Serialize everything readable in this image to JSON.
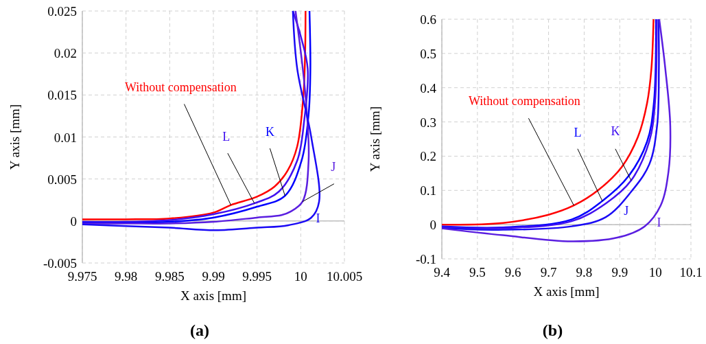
{
  "chart_data": [
    {
      "type": "line",
      "title": "(a)",
      "xlabel": "X axis [mm]",
      "ylabel": "Y axis [mm]",
      "grid": true,
      "legend": false,
      "marker": "none",
      "line_style": "solid",
      "xlim": [
        9.975,
        10.005
      ],
      "xticks": [
        9.975,
        9.98,
        9.985,
        9.99,
        9.995,
        {
          "value": 10,
          "label": "10"
        },
        10.005
      ],
      "ylim": [
        -0.005,
        0.025
      ],
      "yticks": [
        -0.005,
        0,
        0.005,
        0.01,
        0.015,
        0.02,
        0.025
      ],
      "series": [
        {
          "name": "Without compensation",
          "color": "#ff0000",
          "x": [
            9.975,
            9.98,
            9.985,
            9.99,
            9.992,
            9.995,
            9.997,
            9.9985,
            9.9996,
            10.0003,
            10.0005,
            10.00055
          ],
          "values": [
            0.0002,
            0.0002,
            0.0003,
            0.001,
            0.0019,
            0.0029,
            0.0041,
            0.006,
            0.0089,
            0.0149,
            0.02,
            0.025
          ]
        },
        {
          "name": "L",
          "color": "#4010f0",
          "x": [
            9.975,
            9.98,
            9.985,
            9.99,
            9.9947,
            9.9975,
            9.9996,
            10.0004,
            10.0008,
            10.0,
            9.9991
          ],
          "values": [
            -0.0001,
            -0.0001,
            0.0001,
            0.0008,
            0.0021,
            0.0035,
            0.0072,
            0.012,
            0.0181,
            0.022,
            0.025
          ]
        },
        {
          "name": "K",
          "color": "#0000ff",
          "x": [
            9.975,
            9.98,
            9.985,
            9.99,
            9.995,
            9.9982,
            10.0001,
            10.0009,
            10.0011,
            10.001
          ],
          "values": [
            -0.0002,
            -0.0002,
            -0.0001,
            0.0004,
            0.0017,
            0.003,
            0.0072,
            0.0127,
            0.018,
            0.025
          ]
        },
        {
          "name": "J",
          "color": "#5a1ee0",
          "x": [
            9.975,
            9.98,
            9.985,
            9.99,
            9.995,
            9.9978,
            9.9988,
            10.0002,
            10.0009,
            10.0005,
            9.9994
          ],
          "values": [
            -0.0003,
            -0.0003,
            -0.0003,
            -0.0001,
            0.0004,
            0.0007,
            0.0011,
            0.0023,
            0.0072,
            0.0154,
            0.025
          ]
        },
        {
          "name": "I",
          "color": "#1a0af5",
          "x": [
            9.975,
            9.98,
            9.985,
            9.9902,
            9.995,
            9.9986,
            10.0012,
            10.0021,
            10.0012,
            9.9996,
            9.9991
          ],
          "values": [
            -0.0004,
            -0.0006,
            -0.0008,
            -0.0011,
            -0.0008,
            -0.0005,
            0.0004,
            0.0023,
            0.01,
            0.0181,
            0.025
          ]
        }
      ]
    },
    {
      "type": "line",
      "title": "(b)",
      "xlabel": "X axis [mm]",
      "ylabel": "Y axis [mm]",
      "grid": true,
      "legend": false,
      "marker": "none",
      "line_style": "solid",
      "xlim": [
        9.4,
        10.1
      ],
      "xticks": [
        9.4,
        9.5,
        9.6,
        9.7,
        9.8,
        9.9,
        {
          "value": 10,
          "label": "10"
        },
        10.1
      ],
      "ylim": [
        -0.1,
        0.6
      ],
      "yticks": [
        -0.1,
        0,
        0.1,
        0.2,
        0.3,
        0.4,
        0.5,
        0.6
      ],
      "series": [
        {
          "name": "Without compensation",
          "color": "#ff0000",
          "x": [
            9.4,
            9.572,
            9.7,
            9.771,
            9.841,
            9.906,
            9.951,
            9.977,
            9.989,
            9.995
          ],
          "values": [
            0.0,
            0.005,
            0.029,
            0.056,
            0.102,
            0.169,
            0.256,
            0.356,
            0.456,
            0.6
          ]
        },
        {
          "name": "L",
          "color": "#0000ff",
          "x": [
            9.4,
            9.572,
            9.765,
            9.851,
            9.925,
            9.977,
            9.996,
            10.002
          ],
          "values": [
            -0.005,
            -0.008,
            0.015,
            0.069,
            0.142,
            0.243,
            0.356,
            0.6
          ]
        },
        {
          "name": "K",
          "color": "#4010f0",
          "x": [
            9.4,
            9.572,
            9.765,
            9.861,
            9.932,
            9.983,
            9.999,
            10.004
          ],
          "values": [
            -0.007,
            -0.01,
            0.01,
            0.062,
            0.129,
            0.243,
            0.356,
            0.6
          ]
        },
        {
          "name": "J",
          "color": "#1a0af5",
          "x": [
            9.4,
            9.572,
            9.765,
            9.861,
            9.932,
            9.983,
            10.005,
            10.01,
            10.009
          ],
          "values": [
            -0.01,
            -0.015,
            -0.005,
            0.022,
            0.096,
            0.176,
            0.289,
            0.456,
            0.6
          ]
        },
        {
          "name": "I",
          "color": "#5a1ee0",
          "x": [
            9.4,
            9.572,
            9.765,
            9.893,
            9.97,
            10.015,
            10.037,
            10.042,
            10.028,
            10.011
          ],
          "values": [
            -0.011,
            -0.031,
            -0.049,
            -0.038,
            -0.005,
            0.056,
            0.155,
            0.289,
            0.456,
            0.6
          ]
        }
      ]
    }
  ]
}
